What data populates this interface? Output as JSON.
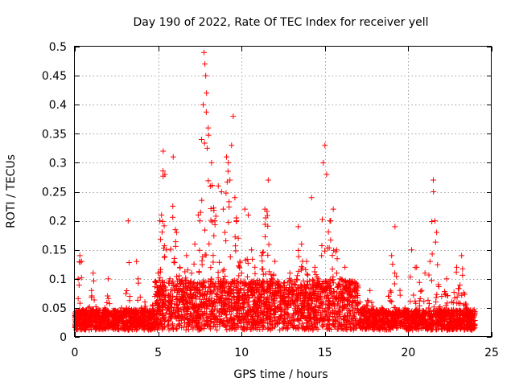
{
  "chart_data": {
    "type": "scatter",
    "title": "Day 190 of 2022, Rate Of TEC Index for receiver yell",
    "xlabel": "GPS time / hours",
    "ylabel": "ROTI / TECUs",
    "xlim": [
      0,
      25
    ],
    "ylim": [
      0,
      0.5
    ],
    "xticks": [
      0,
      5,
      10,
      15,
      20,
      25
    ],
    "xtick_labels": [
      "0",
      "5",
      "10",
      "15",
      "20",
      "25"
    ],
    "yticks": [
      0,
      0.05,
      0.1,
      0.15,
      0.2,
      0.25,
      0.3,
      0.35,
      0.4,
      0.45,
      0.5
    ],
    "ytick_labels": [
      "0",
      "0.05",
      "0.1",
      "0.15",
      "0.2",
      "0.25",
      "0.3",
      "0.35",
      "0.4",
      "0.45",
      "0.5"
    ],
    "grid": true,
    "marker": "plus",
    "color": "#ff0000",
    "series": [
      {
        "x": [
          0.05,
          0.2,
          0.3,
          0.4,
          0.5,
          0.6,
          0.8,
          1.0,
          1.1,
          1.3,
          1.5,
          1.8,
          2.0,
          2.2,
          2.5,
          2.8,
          3.0,
          3.2,
          3.3,
          3.5,
          3.7,
          3.8,
          4.0,
          4.2,
          4.5,
          4.8,
          5.0,
          5.1,
          5.2,
          5.3,
          5.4,
          5.5,
          5.7,
          5.9,
          6.1,
          6.3,
          6.5,
          6.7,
          6.9,
          7.0,
          7.2,
          7.4,
          7.5,
          7.6,
          7.7,
          7.75,
          7.8,
          7.85,
          7.9,
          8.0,
          8.2,
          8.4,
          8.6,
          8.8,
          8.9,
          9.0,
          9.1,
          9.2,
          9.3,
          9.4,
          9.5,
          9.6,
          9.7,
          9.8,
          9.9,
          10.0,
          10.2,
          10.4,
          10.6,
          10.8,
          11.0,
          11.2,
          11.4,
          11.6,
          11.8,
          12.0,
          12.3,
          12.6,
          12.9,
          13.2,
          13.4,
          13.6,
          13.9,
          14.2,
          14.4,
          14.6,
          14.8,
          14.9,
          15.0,
          15.1,
          15.3,
          15.5,
          15.7,
          15.9,
          16.2,
          16.5,
          16.8,
          17.1,
          17.4,
          17.7,
          18.0,
          18.4,
          18.8,
          19.0,
          19.2,
          19.5,
          19.8,
          20.0,
          20.2,
          20.5,
          20.8,
          21.0,
          21.3,
          21.5,
          21.6,
          21.7,
          21.8,
          22.0,
          22.3,
          22.6,
          22.9,
          23.2,
          23.5,
          23.8,
          24.0
        ],
        "y": [
          0.02,
          0.1,
          0.14,
          0.13,
          0.04,
          0.03,
          0.05,
          0.08,
          0.11,
          0.04,
          0.03,
          0.05,
          0.1,
          0.04,
          0.03,
          0.05,
          0.04,
          0.2,
          0.07,
          0.04,
          0.13,
          0.1,
          0.05,
          0.06,
          0.04,
          0.07,
          0.11,
          0.2,
          0.21,
          0.32,
          0.28,
          0.15,
          0.1,
          0.31,
          0.18,
          0.12,
          0.09,
          0.14,
          0.08,
          0.11,
          0.16,
          0.21,
          0.2,
          0.34,
          0.4,
          0.49,
          0.47,
          0.45,
          0.42,
          0.36,
          0.3,
          0.2,
          0.26,
          0.25,
          0.22,
          0.18,
          0.31,
          0.3,
          0.27,
          0.33,
          0.38,
          0.24,
          0.2,
          0.17,
          0.13,
          0.11,
          0.22,
          0.21,
          0.15,
          0.12,
          0.09,
          0.14,
          0.22,
          0.27,
          0.1,
          0.13,
          0.08,
          0.07,
          0.11,
          0.06,
          0.19,
          0.16,
          0.13,
          0.24,
          0.12,
          0.1,
          0.14,
          0.3,
          0.33,
          0.28,
          0.2,
          0.22,
          0.15,
          0.1,
          0.12,
          0.09,
          0.07,
          0.06,
          0.05,
          0.08,
          0.04,
          0.05,
          0.07,
          0.14,
          0.19,
          0.08,
          0.05,
          0.04,
          0.15,
          0.12,
          0.08,
          0.11,
          0.13,
          0.27,
          0.2,
          0.18,
          0.09,
          0.07,
          0.1,
          0.06,
          0.12,
          0.14,
          0.05,
          0.03,
          0.02
        ]
      }
    ]
  }
}
